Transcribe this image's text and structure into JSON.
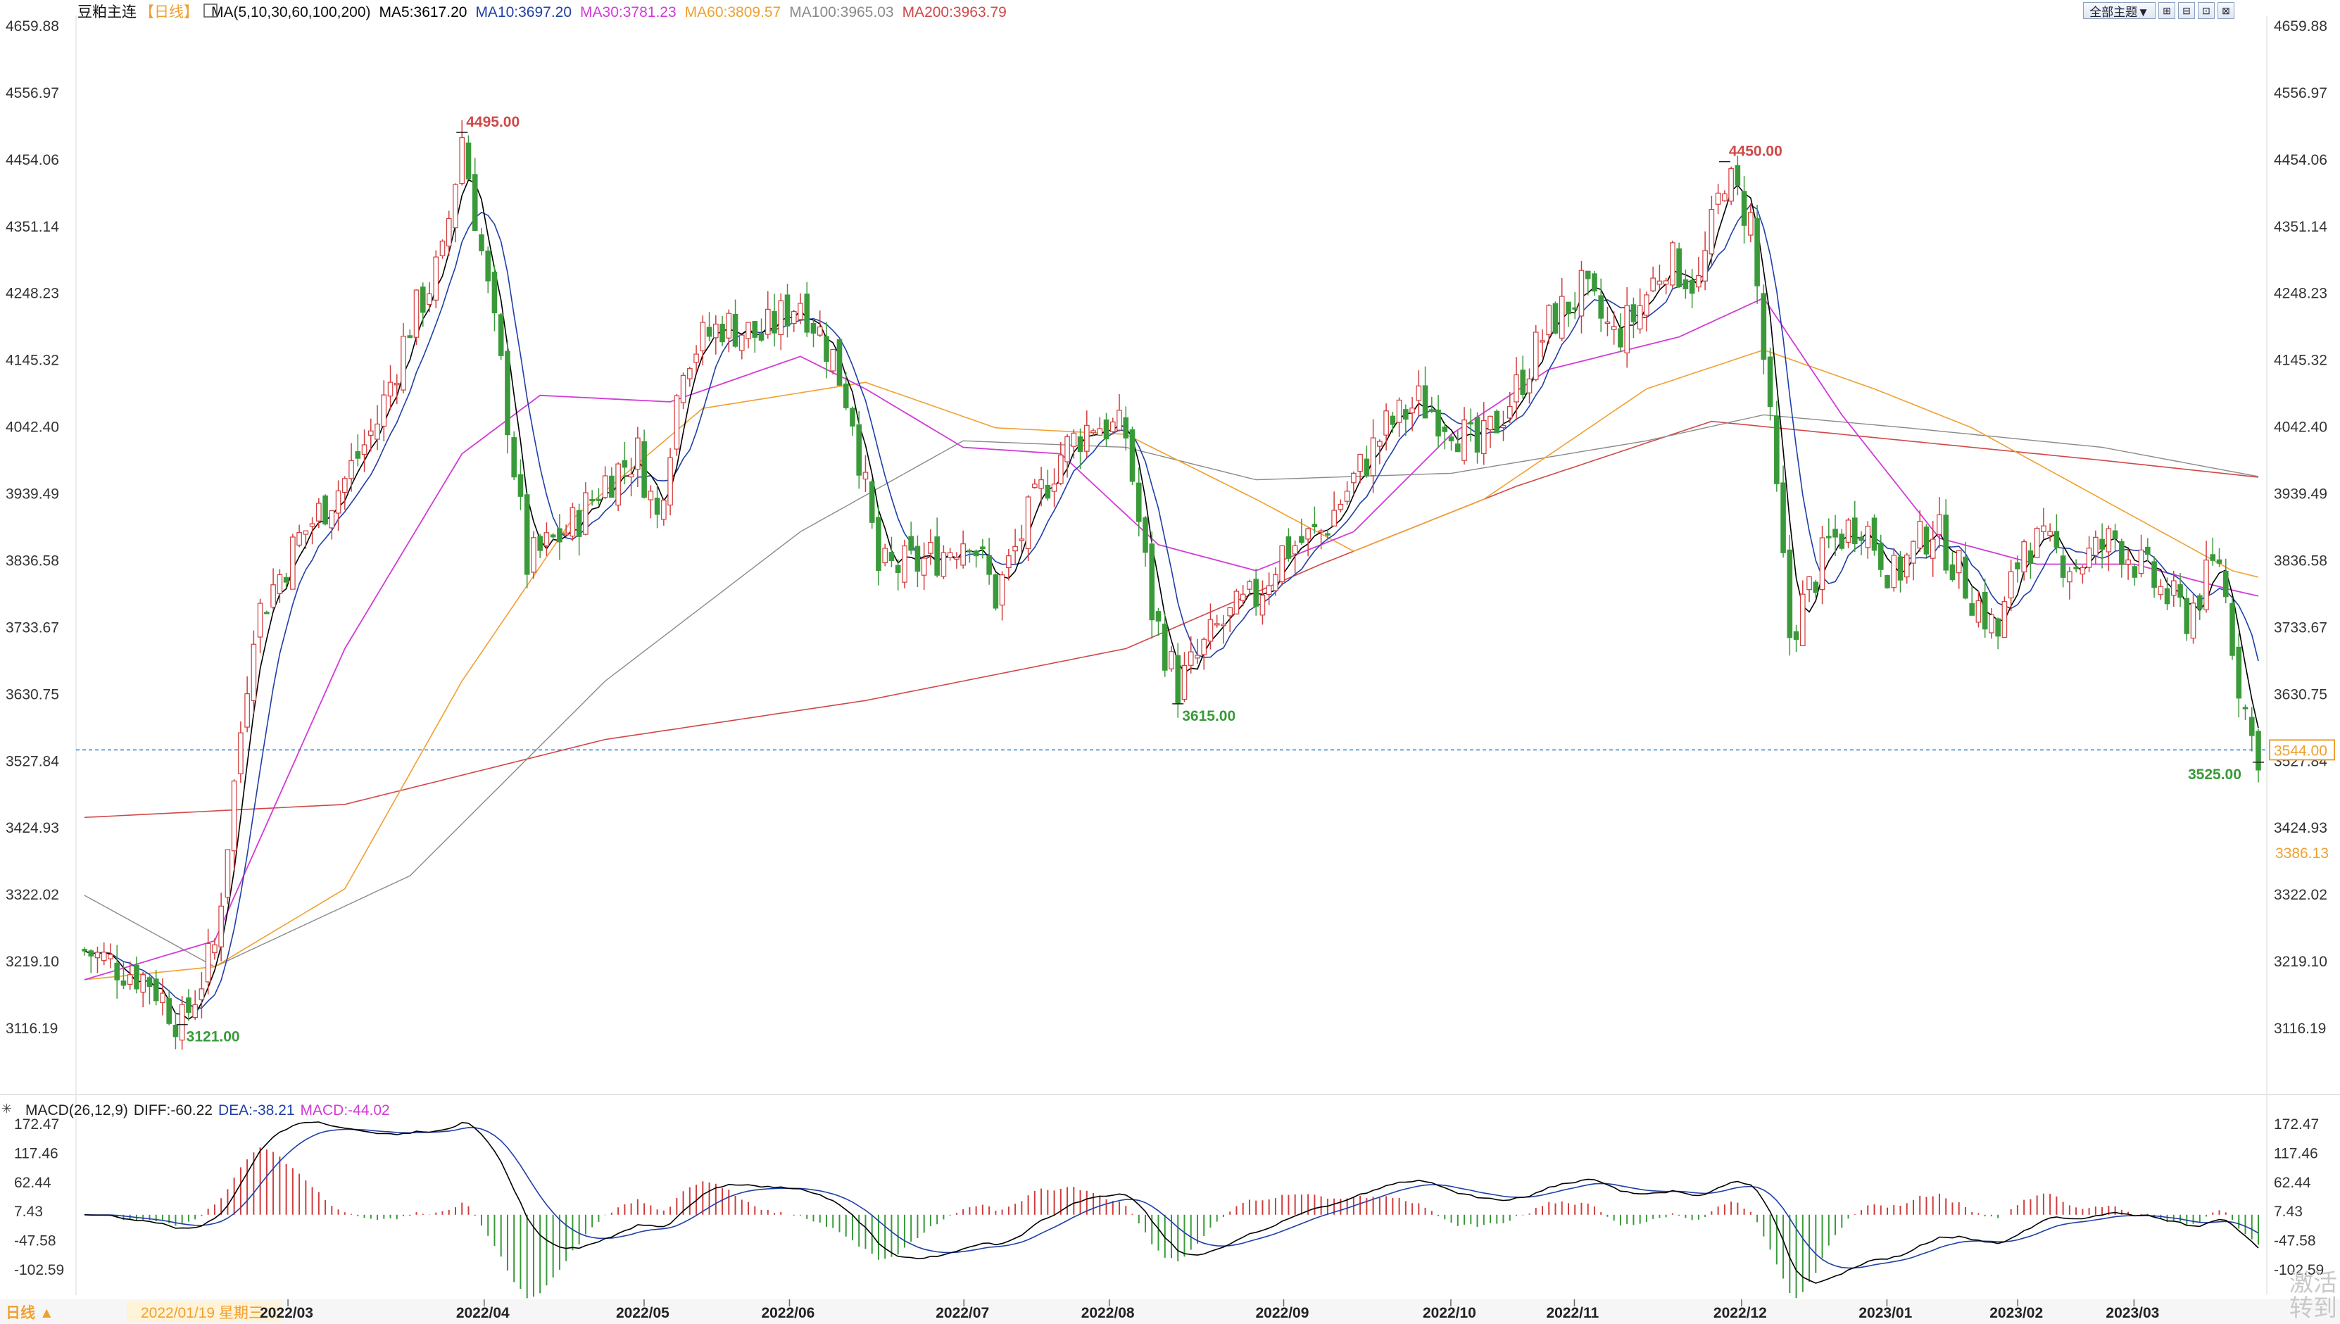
{
  "header": {
    "symbol": "豆粕主连",
    "period": "【日线】",
    "ma_params": "MA(5,10,30,60,100,200)",
    "ma_items": [
      {
        "text": "MA5:3617.20",
        "color": "#000000"
      },
      {
        "text": "MA10:3697.20",
        "color": "#1f3fa6"
      },
      {
        "text": "MA30:3781.23",
        "color": "#d23bd6"
      },
      {
        "text": "MA60:3809.57",
        "color": "#f0a030"
      },
      {
        "text": "MA100:3965.03",
        "color": "#8a8a8a"
      },
      {
        "text": "MA200:3963.79",
        "color": "#d04848"
      }
    ]
  },
  "toolbar": {
    "theme_label": "全部主题▼",
    "icons": [
      "⊞",
      "⊟",
      "⊡",
      "⊠"
    ]
  },
  "price_axis": {
    "ticks": [
      "4659.88",
      "4556.97",
      "4454.06",
      "4351.14",
      "4248.23",
      "4145.32",
      "4042.40",
      "3939.49",
      "3836.58",
      "3733.67",
      "3630.75",
      "3527.84",
      "3424.93",
      "3322.02",
      "3219.10",
      "3116.19"
    ],
    "current_price_label": "3544.00",
    "other_label": "3386.13"
  },
  "macd": {
    "label": "MACD(26,12,9)",
    "diff": "DIFF:-60.22",
    "dea": "DEA:-38.21",
    "macd": "MACD:-44.02",
    "ticks": [
      "172.47",
      "117.46",
      "62.44",
      "7.43",
      "-47.58",
      "-102.59"
    ]
  },
  "x_axis": {
    "period_label": "日线 ▲",
    "cursor_date": "2022/01/19 星期三",
    "months": [
      "2022/03",
      "2022/04",
      "2022/05",
      "2022/06",
      "2022/07",
      "2022/08",
      "2022/09",
      "2022/10",
      "2022/11",
      "2022/12",
      "2023/01",
      "2023/02",
      "2023/03"
    ]
  },
  "annotations": [
    "4495.00",
    "4450.00",
    "3615.00",
    "3525.00",
    "3121.00"
  ],
  "watermark": [
    "激活",
    "转到"
  ],
  "colors": {
    "up": "#d23c3c",
    "down": "#3a9a3a",
    "ma5": "#000000",
    "ma10": "#1f3fa6",
    "ma30": "#d23bd6",
    "ma60": "#f0a030",
    "ma100": "#8a8a8a",
    "ma200": "#d04848",
    "dea": "#1f3fa6",
    "diff": "#000000"
  },
  "chart_data": {
    "type": "candlestick",
    "start_date": "2022-01-19",
    "end_date": "2023-03-30",
    "close_path": [
      [
        0,
        3235
      ],
      [
        10,
        3190
      ],
      [
        15,
        3120
      ],
      [
        20,
        3240
      ],
      [
        26,
        3740
      ],
      [
        33,
        3870
      ],
      [
        40,
        3960
      ],
      [
        45,
        4050
      ],
      [
        50,
        4200
      ],
      [
        55,
        4300
      ],
      [
        58,
        4490
      ],
      [
        64,
        4130
      ],
      [
        68,
        3830
      ],
      [
        75,
        3890
      ],
      [
        80,
        3960
      ],
      [
        85,
        4000
      ],
      [
        88,
        3900
      ],
      [
        92,
        4150
      ],
      [
        98,
        4200
      ],
      [
        104,
        4180
      ],
      [
        110,
        4240
      ],
      [
        115,
        4150
      ],
      [
        118,
        4060
      ],
      [
        122,
        3820
      ],
      [
        128,
        3830
      ],
      [
        132,
        3850
      ],
      [
        136,
        3880
      ],
      [
        140,
        3780
      ],
      [
        145,
        3900
      ],
      [
        150,
        4000
      ],
      [
        155,
        4050
      ],
      [
        160,
        4030
      ],
      [
        164,
        3760
      ],
      [
        168,
        3640
      ],
      [
        174,
        3730
      ],
      [
        180,
        3780
      ],
      [
        184,
        3850
      ],
      [
        190,
        3880
      ],
      [
        195,
        3960
      ],
      [
        200,
        4040
      ],
      [
        205,
        4080
      ],
      [
        210,
        4050
      ],
      [
        214,
        4000
      ],
      [
        220,
        4100
      ],
      [
        225,
        4200
      ],
      [
        230,
        4250
      ],
      [
        235,
        4180
      ],
      [
        238,
        4210
      ],
      [
        243,
        4300
      ],
      [
        248,
        4260
      ],
      [
        252,
        4430
      ],
      [
        256,
        4360
      ],
      [
        262,
        3720
      ],
      [
        268,
        3860
      ],
      [
        273,
        3900
      ],
      [
        278,
        3810
      ],
      [
        284,
        3890
      ],
      [
        289,
        3800
      ],
      [
        294,
        3720
      ],
      [
        298,
        3870
      ],
      [
        302,
        3850
      ],
      [
        306,
        3830
      ],
      [
        312,
        3870
      ],
      [
        318,
        3800
      ],
      [
        323,
        3750
      ],
      [
        328,
        3840
      ],
      [
        331,
        3650
      ],
      [
        333,
        3560
      ],
      [
        334,
        3544
      ]
    ],
    "ma": {
      "MA5": 3617.2,
      "MA10": 3697.2,
      "MA30": 3781.23,
      "MA60": 3809.57,
      "MA100": 3965.03,
      "MA200": 3963.79,
      "ma30_path": [
        [
          0,
          3190
        ],
        [
          20,
          3250
        ],
        [
          40,
          3700
        ],
        [
          58,
          4000
        ],
        [
          70,
          4090
        ],
        [
          90,
          4080
        ],
        [
          110,
          4150
        ],
        [
          120,
          4100
        ],
        [
          135,
          4010
        ],
        [
          150,
          4000
        ],
        [
          165,
          3860
        ],
        [
          180,
          3820
        ],
        [
          195,
          3880
        ],
        [
          210,
          4030
        ],
        [
          225,
          4130
        ],
        [
          245,
          4180
        ],
        [
          258,
          4240
        ],
        [
          270,
          4060
        ],
        [
          285,
          3870
        ],
        [
          300,
          3830
        ],
        [
          315,
          3830
        ],
        [
          330,
          3790
        ],
        [
          334,
          3781
        ]
      ],
      "ma60_path": [
        [
          0,
          3190
        ],
        [
          20,
          3210
        ],
        [
          40,
          3330
        ],
        [
          58,
          3650
        ],
        [
          75,
          3900
        ],
        [
          95,
          4070
        ],
        [
          120,
          4110
        ],
        [
          140,
          4040
        ],
        [
          160,
          4030
        ],
        [
          180,
          3930
        ],
        [
          195,
          3850
        ],
        [
          215,
          3930
        ],
        [
          240,
          4100
        ],
        [
          258,
          4160
        ],
        [
          275,
          4100
        ],
        [
          290,
          4040
        ],
        [
          310,
          3930
        ],
        [
          330,
          3820
        ],
        [
          334,
          3810
        ]
      ],
      "ma100_path": [
        [
          0,
          3320
        ],
        [
          20,
          3210
        ],
        [
          50,
          3350
        ],
        [
          80,
          3650
        ],
        [
          110,
          3880
        ],
        [
          135,
          4020
        ],
        [
          160,
          4010
        ],
        [
          180,
          3960
        ],
        [
          210,
          3970
        ],
        [
          240,
          4020
        ],
        [
          258,
          4060
        ],
        [
          280,
          4040
        ],
        [
          310,
          4010
        ],
        [
          334,
          3965
        ]
      ],
      "ma200_path": [
        [
          0,
          3440
        ],
        [
          40,
          3460
        ],
        [
          80,
          3560
        ],
        [
          120,
          3620
        ],
        [
          160,
          3700
        ],
        [
          190,
          3830
        ],
        [
          220,
          3950
        ],
        [
          250,
          4050
        ],
        [
          280,
          4020
        ],
        [
          310,
          3990
        ],
        [
          334,
          3964
        ]
      ]
    },
    "ylim": [
      3080,
      4680
    ],
    "highs_lows": [
      {
        "label": "4495.00",
        "value": 4495
      },
      {
        "label": "4450.00",
        "value": 4450
      },
      {
        "label": "3615.00",
        "value": 3615
      },
      {
        "label": "3525.00",
        "value": 3525
      },
      {
        "label": "3121.00",
        "value": 3121
      }
    ]
  }
}
